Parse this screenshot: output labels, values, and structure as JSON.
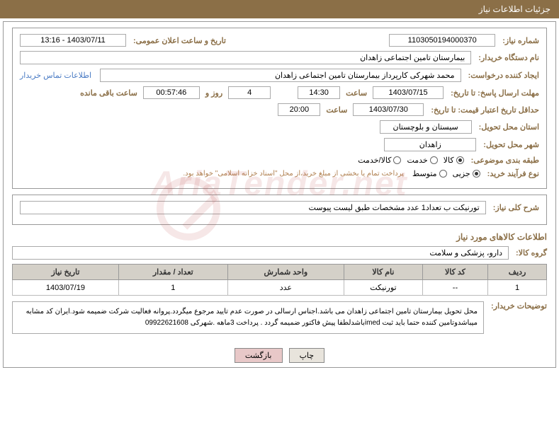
{
  "header_title": "جزئیات اطلاعات نیاز",
  "fields": {
    "need_number_label": "شماره نیاز:",
    "need_number": "1103050194000370",
    "announce_datetime_label": "تاریخ و ساعت اعلان عمومی:",
    "announce_datetime": "1403/07/11 - 13:16",
    "buyer_org_label": "نام دستگاه خریدار:",
    "buyer_org": "بیمارستان تامین اجتماعی زاهدان",
    "requester_label": "ایجاد کننده درخواست:",
    "requester": "محمد شهرکی کارپرداز بیمارستان تامین اجتماعی زاهدان",
    "buyer_contact_link": "اطلاعات تماس خریدار",
    "response_deadline_label": "مهلت ارسال پاسخ: تا تاریخ:",
    "response_date": "1403/07/15",
    "time_label": "ساعت",
    "response_time": "14:30",
    "days_remaining": "4",
    "days_and_label": "روز و",
    "countdown": "00:57:46",
    "remaining_label": "ساعت باقی مانده",
    "price_validity_label": "حداقل تاریخ اعتبار قیمت: تا تاریخ:",
    "price_validity_date": "1403/07/30",
    "price_validity_time": "20:00",
    "delivery_province_label": "استان محل تحویل:",
    "delivery_province": "سیستان و بلوچستان",
    "delivery_city_label": "شهر محل تحویل:",
    "delivery_city": "زاهدان",
    "category_label": "طبقه بندی موضوعی:",
    "cat_goods": "کالا",
    "cat_service": "خدمت",
    "cat_goods_service": "کالا/خدمت",
    "purchase_type_label": "نوع فرآیند خرید:",
    "pt_minor": "جزیی",
    "pt_medium": "متوسط",
    "purchase_note": "پرداخت تمام یا بخشی از مبلغ خرید،از محل \"اسناد خزانه اسلامی\" خواهد بود.",
    "general_desc_label": "شرح کلی نیاز:",
    "general_desc_value": "تورنیکت ب تعداد1 عدد مشخصات طبق لیست پیوست",
    "items_section_title": "اطلاعات کالاهای مورد نیاز",
    "goods_group_label": "گروه کالا:",
    "goods_group_value": "دارو، پزشکی و سلامت",
    "buyer_notes_label": "توضیحات خریدار:",
    "buyer_notes_value": "محل تحویل بیمارستان تامین اجتماعی زاهدان می باشد.اجناس ارسالی در صورت عدم تایید مرجوع میگردد.پروانه فعالیت شرکت ضمیمه شود.ایران کد مشابه میباشدوتامین کننده حتما باید ثبت imedباشدلطفا پیش فاکتور ضمیمه گردد . پرداخت 3ماهه  .شهرکی 09922621608"
  },
  "table": {
    "columns": [
      "ردیف",
      "کد کالا",
      "نام کالا",
      "واحد شمارش",
      "تعداد / مقدار",
      "تاریخ نیاز"
    ],
    "rows": [
      [
        "1",
        "--",
        "تورنیکت",
        "عدد",
        "1",
        "1403/07/19"
      ]
    ]
  },
  "buttons": {
    "print": "چاپ",
    "back": "بازگشت"
  },
  "watermark_text": "AriaTender.net",
  "colors": {
    "header_bg": "#8b6f47",
    "label_color": "#8b6f47",
    "link_color": "#4a7bc4",
    "border_color": "#999999",
    "table_header_bg": "#d4d0c8"
  }
}
